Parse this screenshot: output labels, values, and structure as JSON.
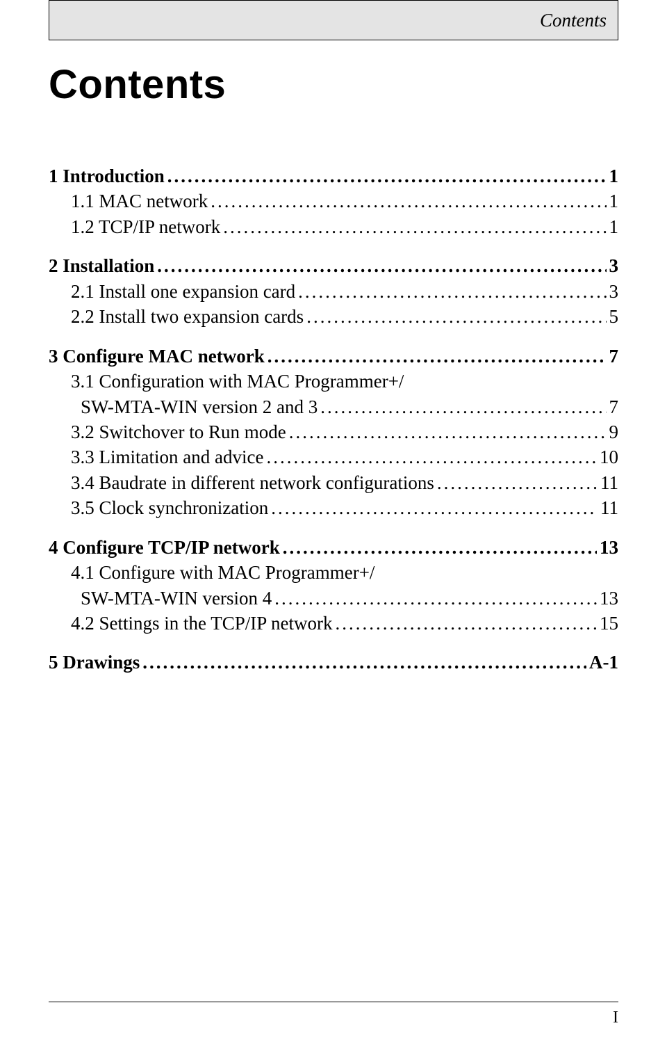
{
  "header": {
    "label": "Contents"
  },
  "title": "Contents",
  "toc": [
    {
      "level": 0,
      "label": "1 Introduction",
      "page": "1"
    },
    {
      "level": 1,
      "label": "1.1 MAC network",
      "page": "1"
    },
    {
      "level": 1,
      "label": "1.2 TCP/IP network",
      "page": "1"
    },
    {
      "level": 0,
      "label": "2 Installation",
      "page": "3"
    },
    {
      "level": 1,
      "label": "2.1 Install one expansion card",
      "page": "3"
    },
    {
      "level": 1,
      "label": "2.2 Install two expansion cards",
      "page": "5"
    },
    {
      "level": 0,
      "label": "3 Configure MAC network",
      "page": "7"
    },
    {
      "level": 1,
      "label": "3.1 Configuration with MAC Programmer+/",
      "cont": "SW-MTA-WIN version 2 and 3",
      "page": "7"
    },
    {
      "level": 1,
      "label": "3.2 Switchover to Run mode",
      "page": "9"
    },
    {
      "level": 1,
      "label": "3.3 Limitation and advice",
      "page": "10"
    },
    {
      "level": 1,
      "label": "3.4 Baudrate in different network configurations",
      "page": "11"
    },
    {
      "level": 1,
      "label": "3.5 Clock synchronization",
      "page": "11"
    },
    {
      "level": 0,
      "label": "4 Configure TCP/IP network",
      "page": "13"
    },
    {
      "level": 1,
      "label": "4.1 Configure with MAC Programmer+/",
      "cont": "SW-MTA-WIN version 4",
      "page": "13"
    },
    {
      "level": 1,
      "label": "4.2 Settings in the TCP/IP network",
      "page": "15"
    },
    {
      "level": 0,
      "label": "5 Drawings",
      "page": " A-1"
    }
  ],
  "footer": {
    "page_number": "I"
  }
}
